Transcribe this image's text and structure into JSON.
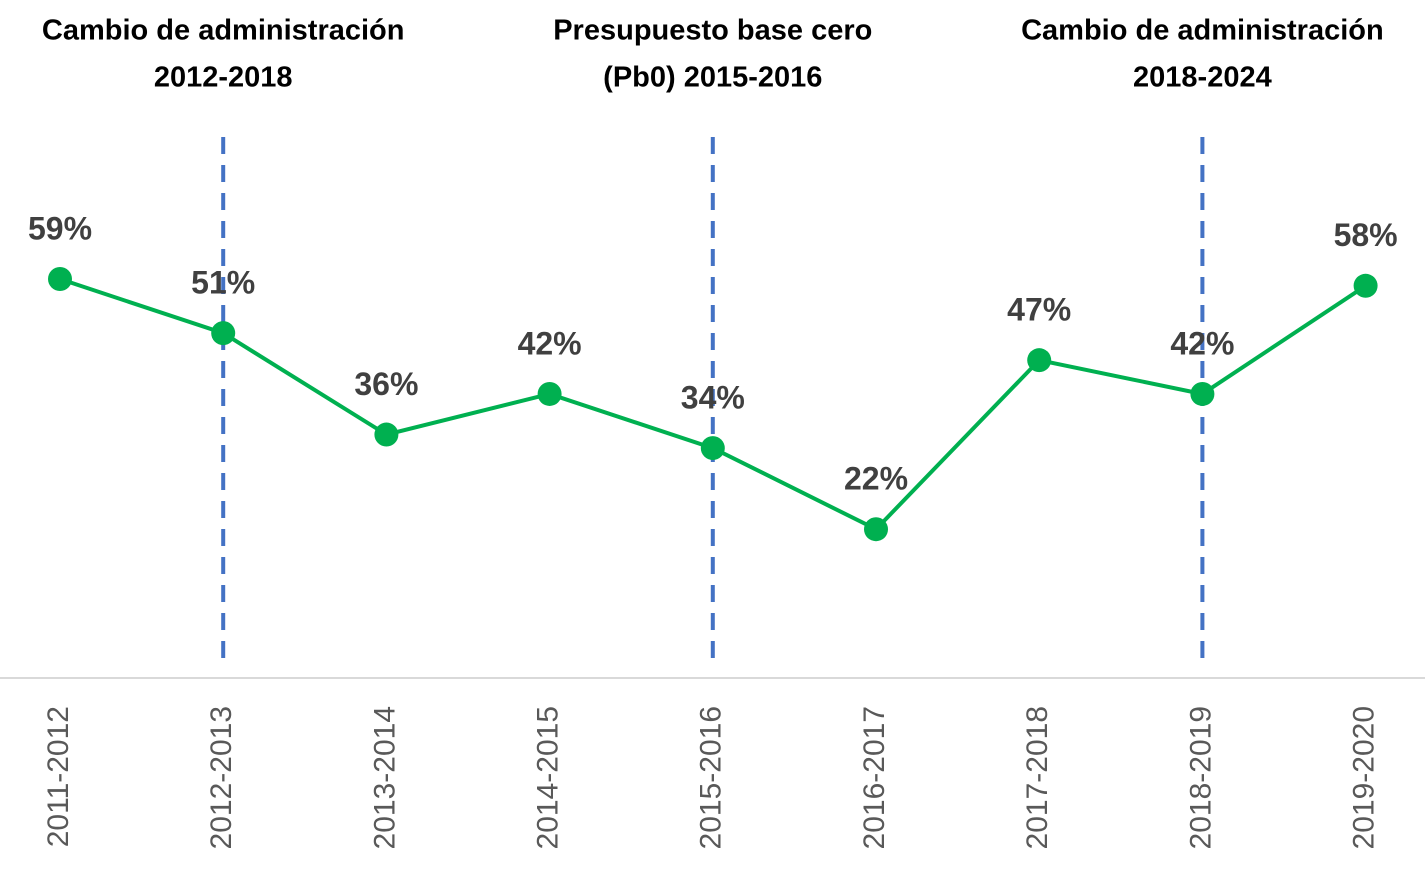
{
  "chart_data": {
    "type": "line",
    "categories": [
      "2011-2012",
      "2012-2013",
      "2013-2014",
      "2014-2015",
      "2015-2016",
      "2016-2017",
      "2017-2018",
      "2018-2019",
      "2019-2020"
    ],
    "values": [
      59,
      51,
      36,
      42,
      34,
      22,
      47,
      42,
      58
    ],
    "value_labels": [
      "59%",
      "51%",
      "36%",
      "42%",
      "34%",
      "22%",
      "47%",
      "42%",
      "58%"
    ],
    "color": "#00b050",
    "ylim": [
      0,
      80
    ],
    "annotations": [
      {
        "category": "2012-2013",
        "text": [
          "Cambio de administración",
          "2012-2018"
        ]
      },
      {
        "category": "2015-2016",
        "text": [
          "Presupuesto base cero",
          "(Pb0) 2015-2016"
        ]
      },
      {
        "category": "2018-2019",
        "text": [
          "Cambio de administración",
          "2018-2024"
        ]
      }
    ],
    "annotation_color": "#4472c4"
  }
}
